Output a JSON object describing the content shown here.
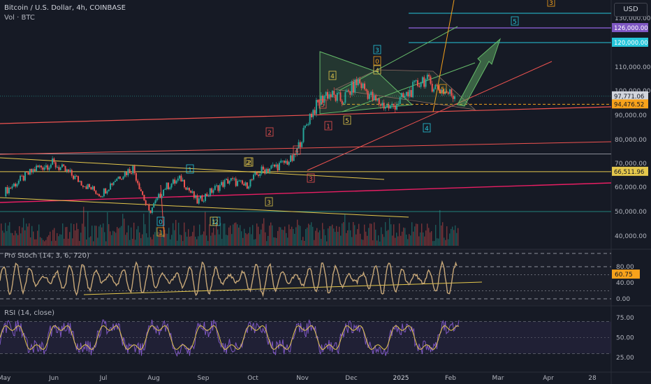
{
  "header": {
    "symbol_title": "Bitcoin / U.S. Dollar, 4h, COINBASE",
    "volume_label": "Vol · BTC",
    "currency_button": "USD"
  },
  "indicators": {
    "stoch_label": "Pro Stoch (14, 3, 6, 720)",
    "rsi_label": "RSI (14, close)"
  },
  "colors": {
    "background": "#161a25",
    "candle_up": "#26a69a",
    "candle_down": "#ef5350",
    "purple_level": "#7e57c2",
    "teal_level": "#26c6da",
    "orange_level": "#f7a21b",
    "yellow_level": "#e5c84c",
    "stoch_line": "#c8a878",
    "rsi_line": "#7e57c2",
    "rsi_signal": "#e5c84c"
  },
  "chart_data": [
    {
      "type": "line",
      "name": "price",
      "x_ticks": [
        "May",
        "Jun",
        "Jul",
        "Aug",
        "Sep",
        "Oct",
        "Nov",
        "Dec",
        "2025",
        "Feb",
        "Mar",
        "Apr",
        "28"
      ],
      "y_ticks": [
        "130,000.00",
        "110,000.00",
        "100,000.00",
        "90,000.00",
        "80,000.00",
        "70,000.00",
        "60,000.00",
        "50,000.00",
        "40,000.00"
      ],
      "y_axis_values": [
        130000,
        110000,
        100000,
        90000,
        80000,
        70000,
        60000,
        50000,
        40000
      ],
      "price_tags": [
        {
          "label": "126,000.00",
          "value": 126000,
          "color": "#7e57c2"
        },
        {
          "label": "120,000.00",
          "value": 120000,
          "color": "#26c6da"
        },
        {
          "label": "97,771.06",
          "value": 97771.06,
          "color": "#d1d4dc"
        },
        {
          "label": "94,476.52",
          "value": 94476.52,
          "color": "#f7a21b"
        },
        {
          "label": "66,511.96",
          "value": 66511.96,
          "color": "#e5c84c"
        }
      ],
      "wave_labels": [
        "0",
        "1",
        "2",
        "3",
        "4",
        "5",
        "1",
        "2",
        "3",
        "4",
        "5",
        "0",
        "1",
        "2",
        "3",
        "4",
        "5",
        "1",
        "2",
        "3",
        "4",
        "5"
      ],
      "price_path": [
        {
          "x": "May",
          "value": 58000
        },
        {
          "value": 63000
        },
        {
          "value": 68000
        },
        {
          "x": "Jun",
          "value": 70000
        },
        {
          "value": 66000
        },
        {
          "value": 61000
        },
        {
          "x": "Jul",
          "value": 57000
        },
        {
          "value": 64000
        },
        {
          "value": 68000
        },
        {
          "x": "Aug",
          "value": 49500
        },
        {
          "value": 60000
        },
        {
          "value": 63500
        },
        {
          "x": "Sep",
          "value": 54000
        },
        {
          "value": 59000
        },
        {
          "value": 63000
        },
        {
          "x": "Oct",
          "value": 60500
        },
        {
          "value": 67000
        },
        {
          "value": 69000
        },
        {
          "x": "Nov",
          "value": 72000
        },
        {
          "value": 90000
        },
        {
          "value": 99000
        },
        {
          "x": "Dec",
          "value": 96000
        },
        {
          "value": 104000
        },
        {
          "value": 96000
        },
        {
          "x": "2025",
          "value": 93000
        },
        {
          "value": 98000
        },
        {
          "value": 105000
        },
        {
          "x": "Feb",
          "value": 101000
        },
        {
          "value": 97771.06
        }
      ]
    },
    {
      "type": "line",
      "name": "stoch",
      "label": "Pro Stoch (14, 3, 6, 720)",
      "y_ticks": [
        "80.00",
        "40.00",
        "0.00"
      ],
      "y_axis_values": [
        80,
        40,
        0
      ],
      "last_value": 60.75,
      "last_label": "60.75"
    },
    {
      "type": "line",
      "name": "rsi",
      "label": "RSI (14, close)",
      "y_ticks": [
        "75.00",
        "50.00",
        "25.00"
      ],
      "y_axis_values": [
        75,
        50,
        25
      ],
      "band": [
        30,
        70
      ]
    }
  ]
}
